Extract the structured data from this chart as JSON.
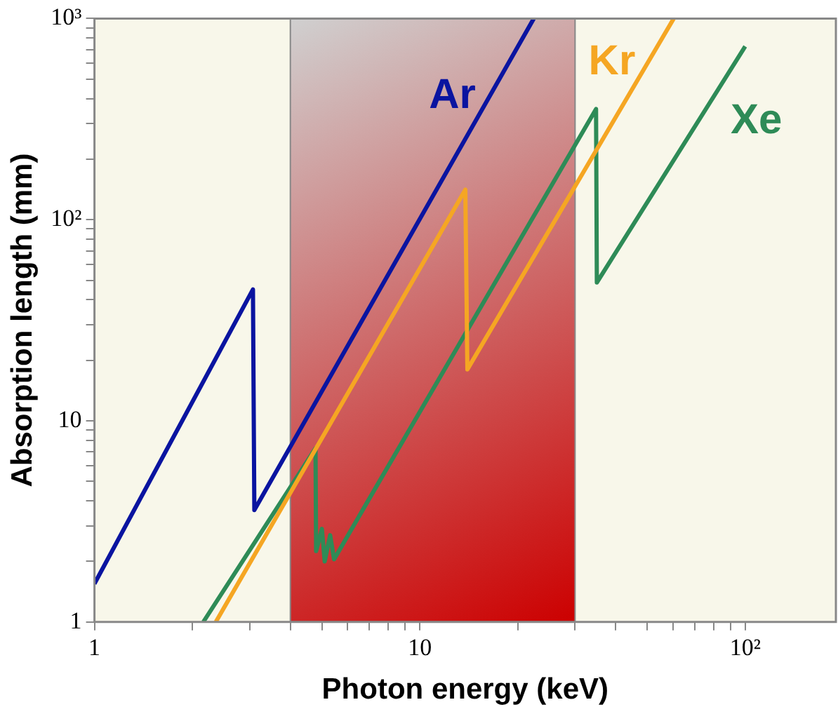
{
  "chart_data": {
    "type": "line",
    "xlabel": "Photon energy (keV)",
    "ylabel": "Absorption length (mm)",
    "log": "xy",
    "legend": false,
    "marker": "none",
    "line_style": "solid",
    "xlim": [
      1,
      190
    ],
    "ylim": [
      1,
      1000
    ],
    "xticks": [
      {
        "value": 1,
        "label": "1"
      },
      {
        "value": 2,
        "label": null
      },
      {
        "value": 3,
        "label": null
      },
      {
        "value": 4,
        "label": null
      },
      {
        "value": 5,
        "label": null
      },
      {
        "value": 6,
        "label": null
      },
      {
        "value": 7,
        "label": null
      },
      {
        "value": 8,
        "label": null
      },
      {
        "value": 9,
        "label": null
      },
      {
        "value": 10,
        "label": "10"
      },
      {
        "value": 20,
        "label": null
      },
      {
        "value": 30,
        "label": null
      },
      {
        "value": 40,
        "label": null
      },
      {
        "value": 50,
        "label": null
      },
      {
        "value": 60,
        "label": null
      },
      {
        "value": 70,
        "label": null
      },
      {
        "value": 80,
        "label": null
      },
      {
        "value": 90,
        "label": null
      },
      {
        "value": 100,
        "label": "10²"
      }
    ],
    "yticks": [
      {
        "value": 1,
        "label": "1"
      },
      {
        "value": 2,
        "label": null
      },
      {
        "value": 3,
        "label": null
      },
      {
        "value": 4,
        "label": null
      },
      {
        "value": 5,
        "label": null
      },
      {
        "value": 6,
        "label": null
      },
      {
        "value": 7,
        "label": null
      },
      {
        "value": 8,
        "label": null
      },
      {
        "value": 9,
        "label": null
      },
      {
        "value": 10,
        "label": "10"
      },
      {
        "value": 20,
        "label": null
      },
      {
        "value": 30,
        "label": null
      },
      {
        "value": 40,
        "label": null
      },
      {
        "value": 50,
        "label": null
      },
      {
        "value": 60,
        "label": null
      },
      {
        "value": 70,
        "label": null
      },
      {
        "value": 80,
        "label": null
      },
      {
        "value": 90,
        "label": null
      },
      {
        "value": 100,
        "label": "10²"
      },
      {
        "value": 200,
        "label": null
      },
      {
        "value": 300,
        "label": null
      },
      {
        "value": 400,
        "label": null
      },
      {
        "value": 500,
        "label": null
      },
      {
        "value": 600,
        "label": null
      },
      {
        "value": 700,
        "label": null
      },
      {
        "value": 800,
        "label": null
      },
      {
        "value": 900,
        "label": null
      },
      {
        "value": 1000,
        "label": "10³"
      }
    ],
    "bands": [
      {
        "axis": "x",
        "from": 4,
        "to": 30,
        "color": "#cc0000"
      }
    ],
    "series": [
      {
        "name": "Ar",
        "color": "#0a14a0",
        "x": [
          1,
          3.07,
          3.1,
          22.4
        ],
        "values": [
          1.55,
          45,
          3.6,
          1000
        ]
      },
      {
        "name": "Kr",
        "color": "#f5a623",
        "x": [
          2.36,
          13.8,
          14,
          60.3
        ],
        "values": [
          1,
          141,
          18,
          1000
        ]
      },
      {
        "name": "Xe",
        "color": "#2e8b57",
        "x": [
          2.16,
          4.78,
          4.8,
          5.0,
          5.1,
          5.3,
          5.45,
          34.8,
          35,
          100
        ],
        "values": [
          1,
          7.3,
          2.25,
          2.9,
          2.0,
          2.7,
          2.05,
          355,
          48.7,
          727
        ]
      }
    ]
  }
}
